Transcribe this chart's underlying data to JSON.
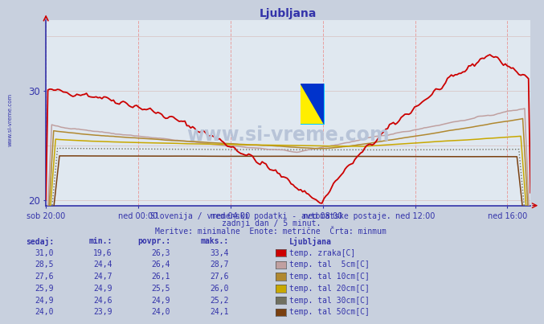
{
  "title": "Ljubljana",
  "background_color": "#c8d0de",
  "plot_bg_color": "#e0e8f0",
  "grid_color_v": "#e8a0a0",
  "grid_color_h": "#d8c0c0",
  "x_labels": [
    "sob 20:00",
    "ned 00:00",
    "ned 04:00",
    "ned 08:00",
    "ned 12:00",
    "ned 16:00"
  ],
  "x_ticks_norm": [
    0.0,
    0.19048,
    0.38095,
    0.57143,
    0.7619,
    0.95238
  ],
  "ylim": [
    19.5,
    36.5
  ],
  "yticks": [
    20,
    30
  ],
  "label_color": "#3333aa",
  "axis_color": "#3333aa",
  "title_color": "#3333aa",
  "subtitle1": "Slovenija / vremenski podatki - avtomatske postaje.",
  "subtitle2": "zadnji dan / 5 minut.",
  "subtitle3": "Meritve: minimalne  Enote: metrične  Črta: minmum",
  "subtitle_color": "#3333aa",
  "watermark": "www.si-vreme.com",
  "watermark_color": "#b8c4d8",
  "series_colors": [
    "#cc0000",
    "#c0a0a0",
    "#b08830",
    "#c8a800",
    "#707060",
    "#7a4010"
  ],
  "series_names": [
    "temp. zraka[C]",
    "temp. tal  5cm[C]",
    "temp. tal 10cm[C]",
    "temp. tal 20cm[C]",
    "temp. tal 30cm[C]",
    "temp. tal 50cm[C]"
  ],
  "table_data": [
    [
      31.0,
      19.6,
      26.3,
      33.4
    ],
    [
      28.5,
      24.4,
      26.4,
      28.7
    ],
    [
      27.6,
      24.7,
      26.1,
      27.6
    ],
    [
      25.9,
      24.9,
      25.5,
      26.0
    ],
    [
      24.9,
      24.6,
      24.9,
      25.2
    ],
    [
      24.0,
      23.9,
      24.0,
      24.1
    ]
  ],
  "n_points": 252
}
